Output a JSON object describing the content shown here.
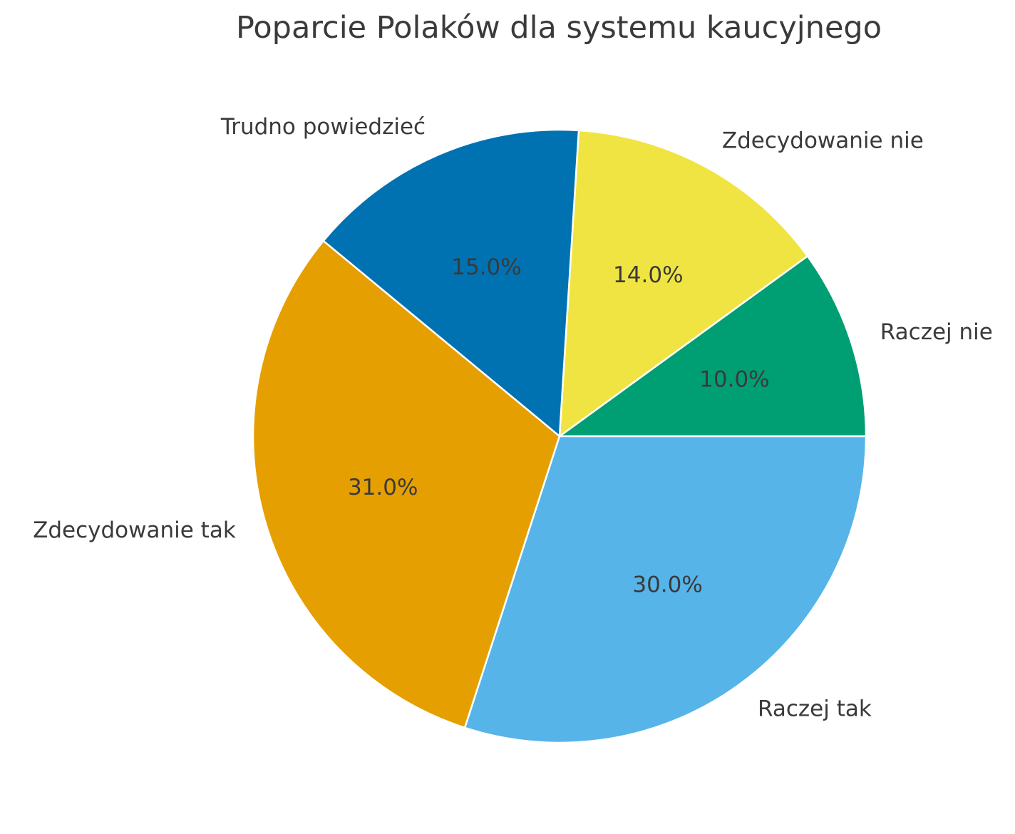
{
  "title": "Poparcie Polaków dla systemu kaucyjnego",
  "colors": {
    "background": "#ffffff",
    "text": "#3a3a3a",
    "wedge_edge": "#ffffff"
  },
  "chart_data": {
    "type": "pie",
    "title": "Poparcie Polaków dla systemu kaucyjnego",
    "slices": [
      {
        "label": "Raczej nie",
        "value": 10.0,
        "percent_label": "10.0%",
        "color": "#009E73"
      },
      {
        "label": "Zdecydowanie nie",
        "value": 14.0,
        "percent_label": "14.0%",
        "color": "#F0E442"
      },
      {
        "label": "Trudno powiedzieć",
        "value": 15.0,
        "percent_label": "15.0%",
        "color": "#0072B2"
      },
      {
        "label": "Zdecydowanie tak",
        "value": 31.0,
        "percent_label": "31.0%",
        "color": "#E69F00"
      },
      {
        "label": "Raczej tak",
        "value": 30.0,
        "percent_label": "30.0%",
        "color": "#56B4E9"
      }
    ],
    "start_angle_deg": 0,
    "direction": "counterclockwise",
    "label_distance": 1.1,
    "percent_distance": 0.6,
    "legend": "none",
    "grid": false
  }
}
